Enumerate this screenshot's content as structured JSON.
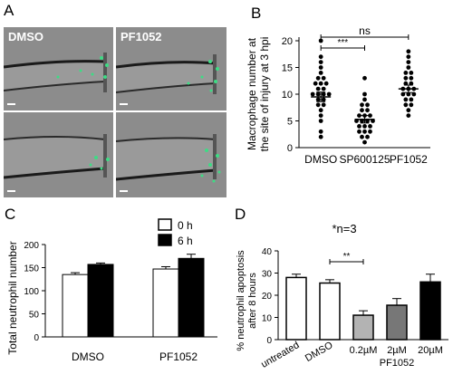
{
  "panels": {
    "a": {
      "letter": "A",
      "images": [
        {
          "label": "DMSO"
        },
        {
          "label": "PF1052"
        },
        {
          "label": ""
        },
        {
          "label": ""
        }
      ]
    },
    "b": {
      "letter": "B"
    },
    "c": {
      "letter": "C"
    },
    "d": {
      "letter": "D"
    }
  },
  "colors": {
    "micrograph_bg": "#8c8c8c",
    "fluorescent_cells": "#3ddc84",
    "bar_white": "#ffffff",
    "bar_black": "#000000",
    "bar_light_grey": "#b3b3b3",
    "bar_dark_grey": "#777777"
  },
  "chart_data": [
    {
      "panel": "B",
      "type": "scatter",
      "title": "",
      "ylabel": "Macrophage number at the site of injury at 3 hpi",
      "ylabel_lines": [
        "Macrophage number at",
        "the site of injury at 3 hpi"
      ],
      "xlabel": "",
      "ylim": [
        0,
        20
      ],
      "yticks": [
        0,
        5,
        10,
        15,
        20
      ],
      "grid": false,
      "categories": [
        "DMSO",
        "SP600125",
        "PF1052"
      ],
      "series": [
        {
          "values": [
            20,
            17,
            16,
            15,
            14,
            13,
            13,
            12,
            12,
            12,
            11,
            11,
            10,
            10,
            10,
            10,
            9,
            9,
            8,
            8,
            7,
            6,
            5,
            3,
            2
          ]
        },
        {
          "values": [
            13,
            10,
            9,
            8,
            8,
            7,
            7,
            6,
            6,
            6,
            5,
            5,
            5,
            5,
            4,
            4,
            4,
            3,
            3,
            3,
            2,
            2,
            1
          ]
        },
        {
          "values": [
            18,
            17,
            16,
            15,
            14,
            14,
            13,
            13,
            12,
            12,
            11,
            11,
            11,
            10,
            10,
            10,
            9,
            9,
            8,
            8,
            7,
            6
          ]
        }
      ],
      "means": [
        9.5,
        5.3,
        11
      ],
      "sem": [
        0.9,
        0.7,
        0.7
      ],
      "annotations": [
        {
          "text": "***",
          "from": "DMSO",
          "to": "SP600125"
        },
        {
          "text": "ns",
          "from": "DMSO",
          "to": "PF1052"
        }
      ]
    },
    {
      "panel": "C",
      "type": "bar",
      "title": "",
      "ylabel": "Total neutrophil number",
      "xlabel": "",
      "ylim": [
        0,
        200
      ],
      "yticks": [
        0,
        50,
        100,
        150,
        200
      ],
      "grid": false,
      "legend_position": "top-right",
      "categories": [
        "DMSO",
        "PF1052"
      ],
      "series": [
        {
          "name": "0 h",
          "values": [
            135,
            147
          ],
          "err": [
            4,
            5
          ],
          "color": "#ffffff"
        },
        {
          "name": "6 h",
          "values": [
            157,
            170
          ],
          "err": [
            3,
            9
          ],
          "color": "#000000"
        }
      ]
    },
    {
      "panel": "D",
      "type": "bar",
      "title": "*n=3",
      "ylabel": "% neutrophil apoptosis after 8 hours",
      "ylabel_lines": [
        "% neutrophil apoptosis",
        "after 8 hours"
      ],
      "xlabel": "",
      "ylim": [
        0,
        40
      ],
      "yticks": [
        0,
        10,
        20,
        30,
        40
      ],
      "grid": false,
      "categories": [
        "untreated",
        "DMSO",
        "0.2µM",
        "2µM",
        "20µM"
      ],
      "group_label": "PF1052",
      "values": [
        28,
        25.5,
        11,
        15.5,
        26
      ],
      "err": [
        1.5,
        1.5,
        2,
        3,
        3.5
      ],
      "bar_colors": [
        "#ffffff",
        "#ffffff",
        "#b3b3b3",
        "#777777",
        "#000000"
      ],
      "annotations": [
        {
          "text": "**",
          "from": "DMSO",
          "to": "0.2µM"
        }
      ]
    }
  ]
}
